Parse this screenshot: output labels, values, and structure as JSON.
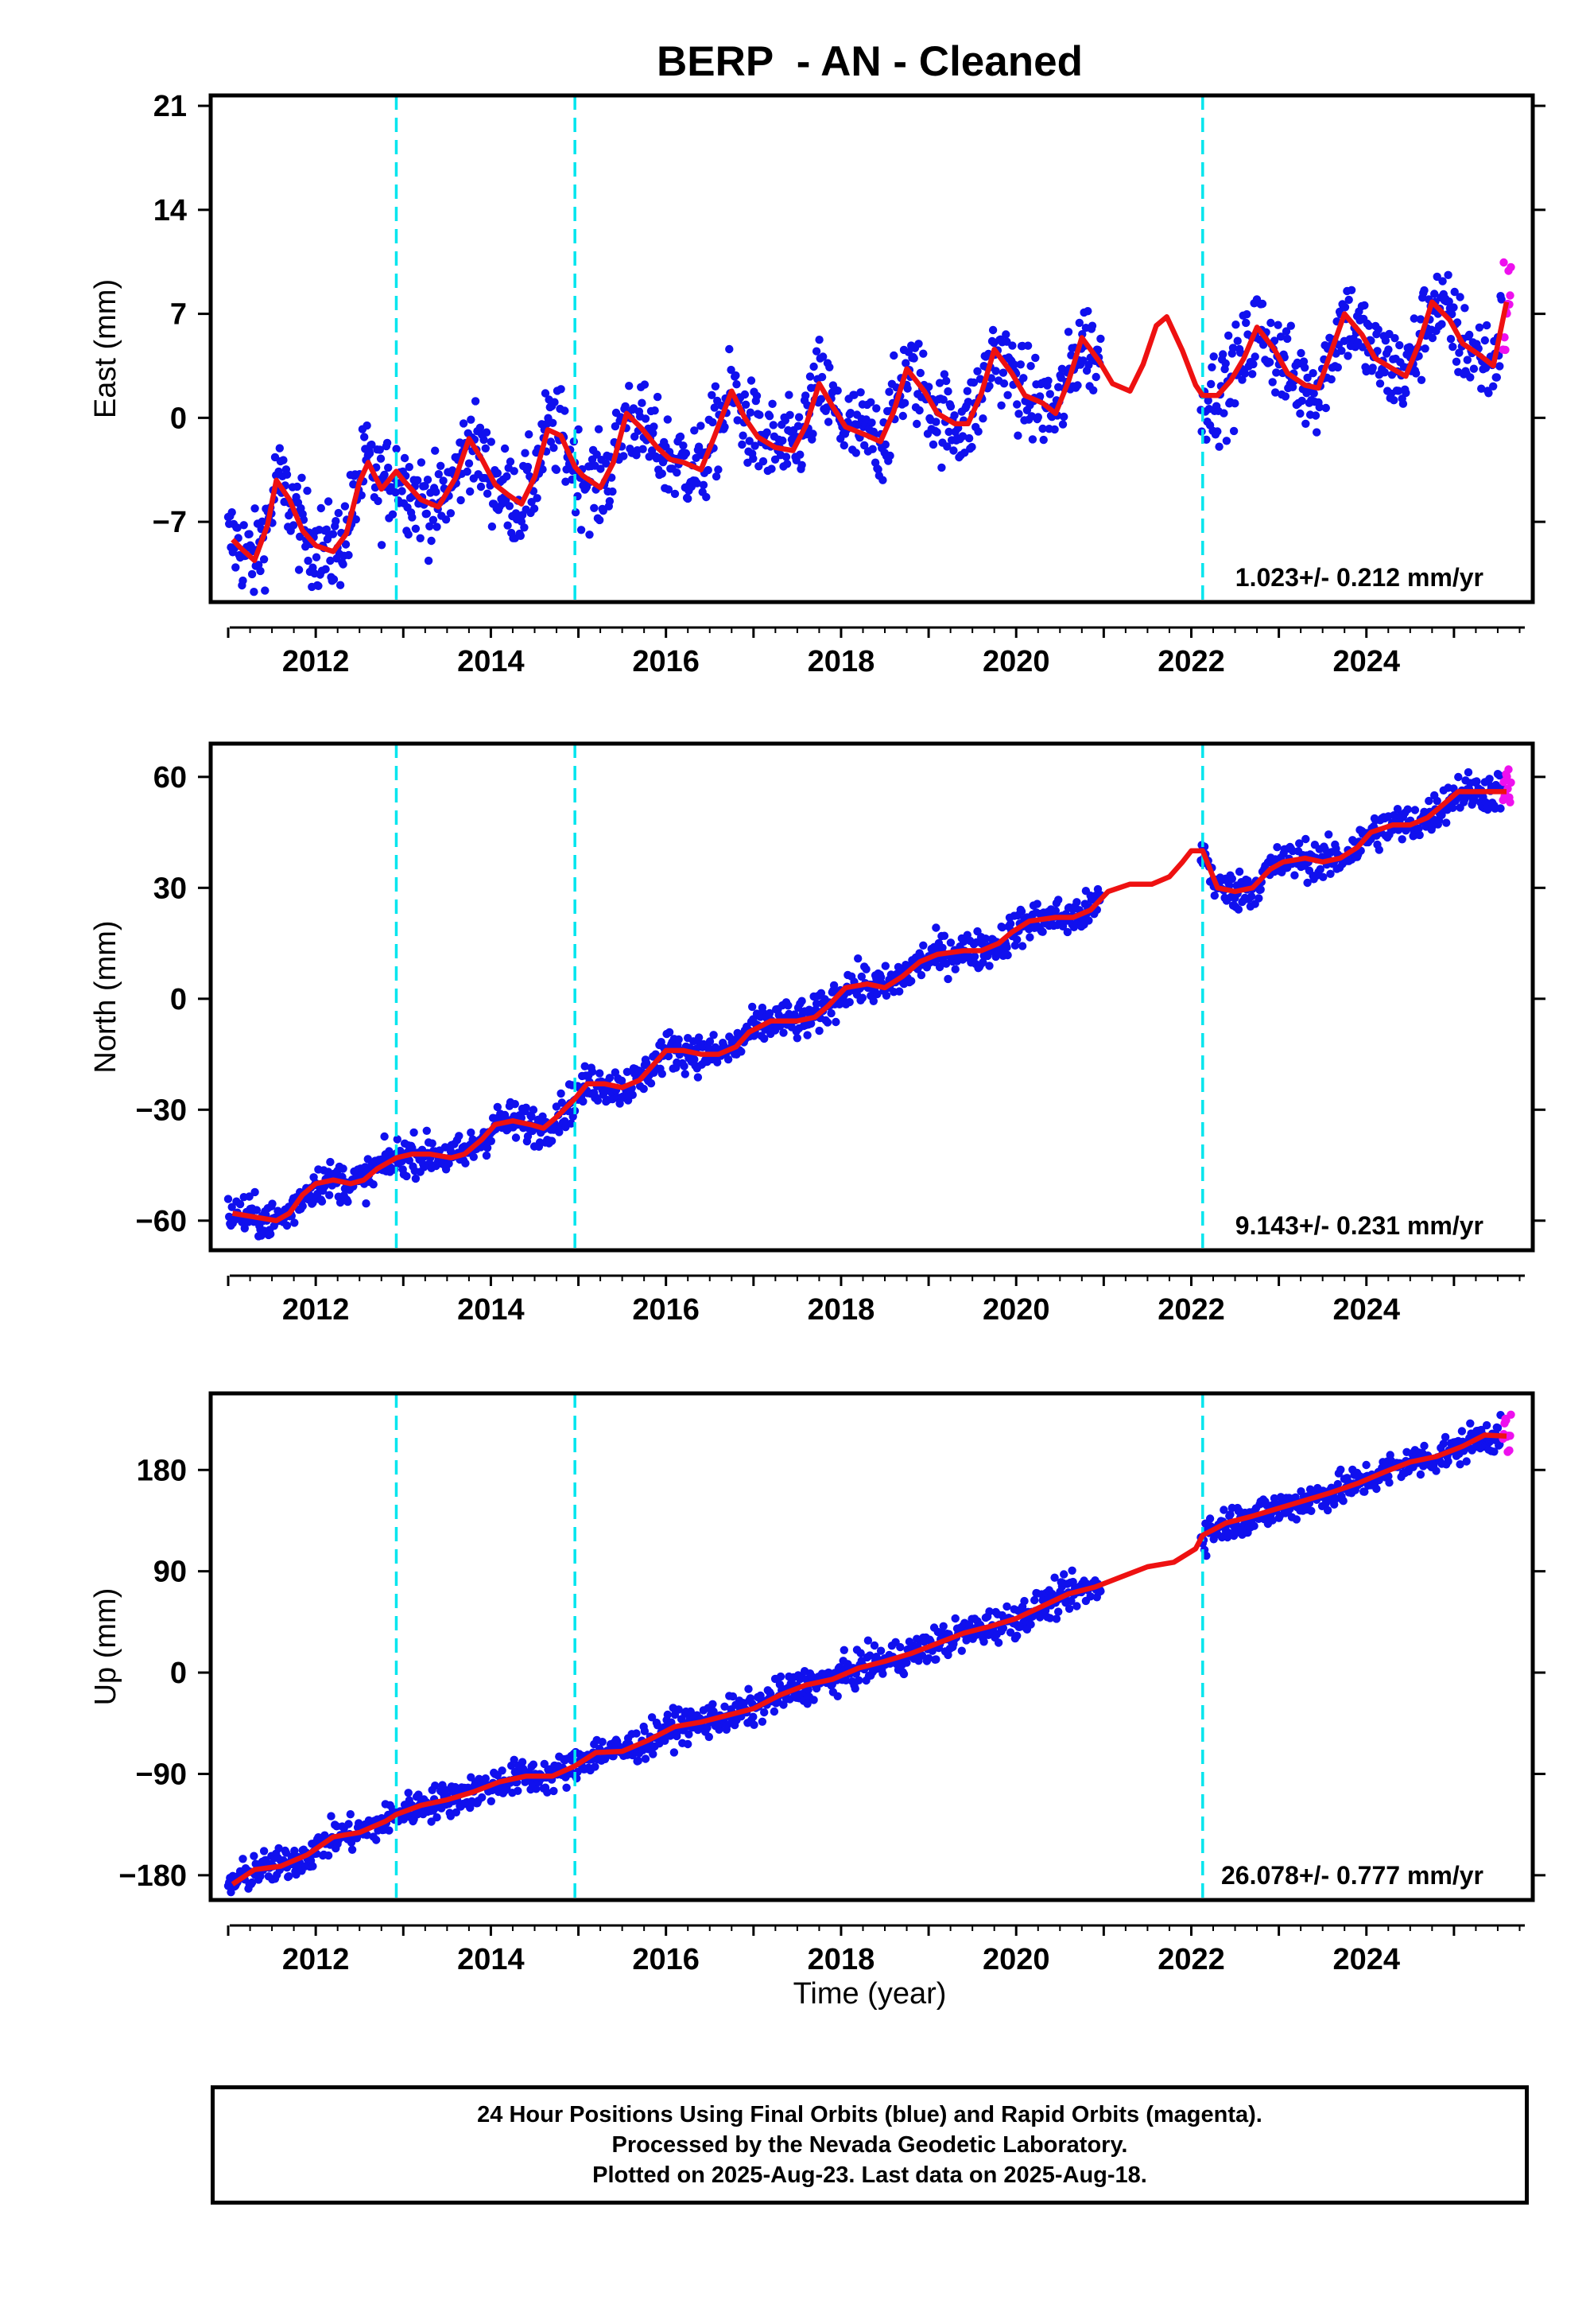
{
  "colors": {
    "final_orbits": "#1010ee",
    "rapid_orbits": "#ee10ee",
    "model": "#ee1111",
    "steps": "#00e5ee"
  },
  "chart_data": {
    "type": "scatter",
    "title": "BERP  - AN - Cleaned",
    "xlabel": "Time (year)",
    "xlim": [
      2010.8,
      2025.9
    ],
    "xticks": [
      2012,
      2014,
      2016,
      2018,
      2020,
      2022,
      2024
    ],
    "step_dates": [
      2012.92,
      2014.96,
      2022.13
    ],
    "panels": [
      {
        "name": "east",
        "ylabel": "East (mm)",
        "ylim": [
          -12.4,
          21.7
        ],
        "yticks": [
          21,
          14,
          7,
          0,
          -7
        ],
        "ytick_labels": [
          "21",
          "14",
          "7",
          "0",
          "−7"
        ],
        "rate_label": "1.023+/- 0.212 mm/yr",
        "series": [
          {
            "type": "model-line",
            "x": [
              2011.05,
              2011.15,
              2011.3,
              2011.45,
              2011.55,
              2011.7,
              2011.85,
              2012.0,
              2012.1,
              2012.2,
              2012.35,
              2012.5,
              2012.6,
              2012.75,
              2012.92,
              2013.0,
              2013.2,
              2013.4,
              2013.6,
              2013.75,
              2013.9,
              2014.05,
              2014.2,
              2014.35,
              2014.5,
              2014.65,
              2014.8,
              2014.96,
              2015.05,
              2015.25,
              2015.4,
              2015.55,
              2015.72,
              2015.9,
              2016.05,
              2016.2,
              2016.4,
              2016.55,
              2016.75,
              2016.9,
              2017.05,
              2017.25,
              2017.45,
              2017.6,
              2017.75,
              2017.9,
              2018.05,
              2018.3,
              2018.45,
              2018.6,
              2018.75,
              2018.95,
              2019.1,
              2019.3,
              2019.45,
              2019.6,
              2019.75,
              2019.95,
              2020.1,
              2020.3,
              2020.45,
              2020.6,
              2020.75,
              2020.95,
              2021.1,
              2021.3,
              2021.45,
              2021.6,
              2021.72,
              2021.9,
              2022.05,
              2022.13,
              2022.3,
              2022.45,
              2022.6,
              2022.75,
              2022.95,
              2023.1,
              2023.3,
              2023.45,
              2023.6,
              2023.75,
              2023.95,
              2024.1,
              2024.3,
              2024.45,
              2024.6,
              2024.75,
              2024.95,
              2025.1,
              2025.3,
              2025.45,
              2025.6
            ],
            "y": [
              -8.2,
              -8.8,
              -9.6,
              -7.2,
              -4.2,
              -5.5,
              -7.6,
              -8.6,
              -8.8,
              -9.0,
              -7.8,
              -4.3,
              -3.0,
              -4.8,
              -3.6,
              -4.2,
              -5.5,
              -6.0,
              -4.0,
              -1.4,
              -2.8,
              -4.5,
              -5.2,
              -5.8,
              -4.0,
              -0.8,
              -1.2,
              -3.3,
              -3.9,
              -4.7,
              -3.0,
              0.3,
              -0.7,
              -2.0,
              -2.8,
              -3.0,
              -3.5,
              -1.3,
              1.8,
              0.0,
              -1.3,
              -2.0,
              -2.2,
              -0.5,
              2.3,
              0.8,
              -0.6,
              -1.2,
              -1.6,
              0.4,
              3.3,
              1.8,
              0.3,
              -0.4,
              -0.4,
              1.6,
              4.6,
              3.0,
              1.5,
              1.0,
              0.3,
              2.5,
              5.4,
              3.8,
              2.3,
              1.8,
              3.6,
              6.2,
              6.8,
              4.5,
              2.2,
              1.5,
              1.5,
              2.5,
              4.0,
              6.1,
              4.6,
              3.0,
              2.2,
              2.0,
              4.5,
              7.0,
              5.6,
              4.0,
              3.3,
              2.8,
              5.0,
              7.8,
              6.6,
              5.0,
              4.2,
              3.5,
              7.8
            ]
          }
        ]
      },
      {
        "name": "north",
        "ylabel": "North (mm)",
        "ylim": [
          -68,
          69
        ],
        "yticks": [
          60,
          30,
          0,
          -30,
          -60
        ],
        "ytick_labels": [
          "60",
          "30",
          "0",
          "−30",
          "−60"
        ],
        "rate_label": "9.143+/- 0.231 mm/yr",
        "series": [
          {
            "type": "model-line",
            "x": [
              2011.05,
              2011.3,
              2011.55,
              2011.7,
              2011.85,
              2012.0,
              2012.2,
              2012.4,
              2012.55,
              2012.7,
              2012.92,
              2013.1,
              2013.3,
              2013.55,
              2013.7,
              2013.9,
              2014.05,
              2014.25,
              2014.45,
              2014.6,
              2014.75,
              2014.96,
              2015.1,
              2015.3,
              2015.5,
              2015.7,
              2015.85,
              2016.0,
              2016.2,
              2016.4,
              2016.6,
              2016.8,
              2016.95,
              2017.2,
              2017.5,
              2017.7,
              2017.85,
              2018.05,
              2018.3,
              2018.5,
              2018.7,
              2018.9,
              2019.1,
              2019.4,
              2019.6,
              2019.8,
              2019.95,
              2020.15,
              2020.45,
              2020.65,
              2020.85,
              2021.05,
              2021.3,
              2021.55,
              2021.75,
              2021.9,
              2022.0,
              2022.13,
              2022.3,
              2022.5,
              2022.7,
              2022.9,
              2023.05,
              2023.3,
              2023.5,
              2023.7,
              2023.9,
              2024.05,
              2024.3,
              2024.5,
              2024.7,
              2024.9,
              2025.05,
              2025.3,
              2025.6
            ],
            "y": [
              -58,
              -59,
              -60,
              -58,
              -53,
              -50,
              -49,
              -50,
              -49,
              -46,
              -43,
              -42,
              -42,
              -43,
              -42,
              -38,
              -34,
              -33,
              -34,
              -35,
              -32,
              -27,
              -23,
              -23,
              -24,
              -22,
              -18,
              -14,
              -14,
              -15,
              -15,
              -13,
              -9,
              -6,
              -6,
              -5,
              -2,
              3,
              4,
              3,
              6,
              10,
              12,
              13,
              13,
              15,
              18,
              21,
              22,
              22,
              24,
              29,
              31,
              31,
              33,
              37,
              40,
              40,
              30,
              29,
              30,
              35,
              37,
              38,
              37,
              38,
              41,
              45,
              47,
              47,
              49,
              53,
              56,
              56,
              56
            ]
          }
        ]
      },
      {
        "name": "up",
        "ylabel": "Up (mm)",
        "ylim": [
          -202,
          248
        ],
        "yticks": [
          180,
          90,
          0,
          -90,
          -180
        ],
        "ytick_labels": [
          "180",
          "90",
          "0",
          "−90",
          "−180"
        ],
        "rate_label": "26.078+/- 0.777 mm/yr",
        "series": [
          {
            "type": "model-line",
            "x": [
              2011.05,
              2011.3,
              2011.6,
              2011.9,
              2012.2,
              2012.5,
              2012.8,
              2012.92,
              2013.2,
              2013.5,
              2013.8,
              2014.1,
              2014.4,
              2014.7,
              2014.96,
              2015.2,
              2015.5,
              2015.8,
              2016.1,
              2016.4,
              2016.7,
              2017.0,
              2017.3,
              2017.6,
              2017.9,
              2018.2,
              2018.5,
              2018.8,
              2019.1,
              2019.4,
              2019.7,
              2020.0,
              2020.3,
              2020.6,
              2020.9,
              2021.2,
              2021.5,
              2021.8,
              2022.05,
              2022.13,
              2022.4,
              2022.7,
              2023.0,
              2023.3,
              2023.6,
              2023.9,
              2024.2,
              2024.5,
              2024.8,
              2025.1,
              2025.35,
              2025.6
            ],
            "y": [
              -188,
              -175,
              -172,
              -162,
              -146,
              -142,
              -132,
              -126,
              -118,
              -113,
              -106,
              -97,
              -92,
              -92,
              -83,
              -71,
              -70,
              -60,
              -48,
              -44,
              -38,
              -32,
              -20,
              -11,
              -6,
              4,
              10,
              17,
              26,
              35,
              41,
              48,
              59,
              70,
              76,
              85,
              94,
              98,
              110,
              122,
              133,
              139,
              146,
              153,
              160,
              168,
              178,
              187,
              192,
              201,
              211,
              210
            ]
          }
        ]
      }
    ]
  },
  "footer": {
    "line1": "24 Hour Positions Using Final Orbits (blue) and Rapid Orbits (magenta).",
    "line2": "Processed by the Nevada Geodetic Laboratory.",
    "line3": "Plotted on 2025-Aug-23. Last data on 2025-Aug-18."
  }
}
